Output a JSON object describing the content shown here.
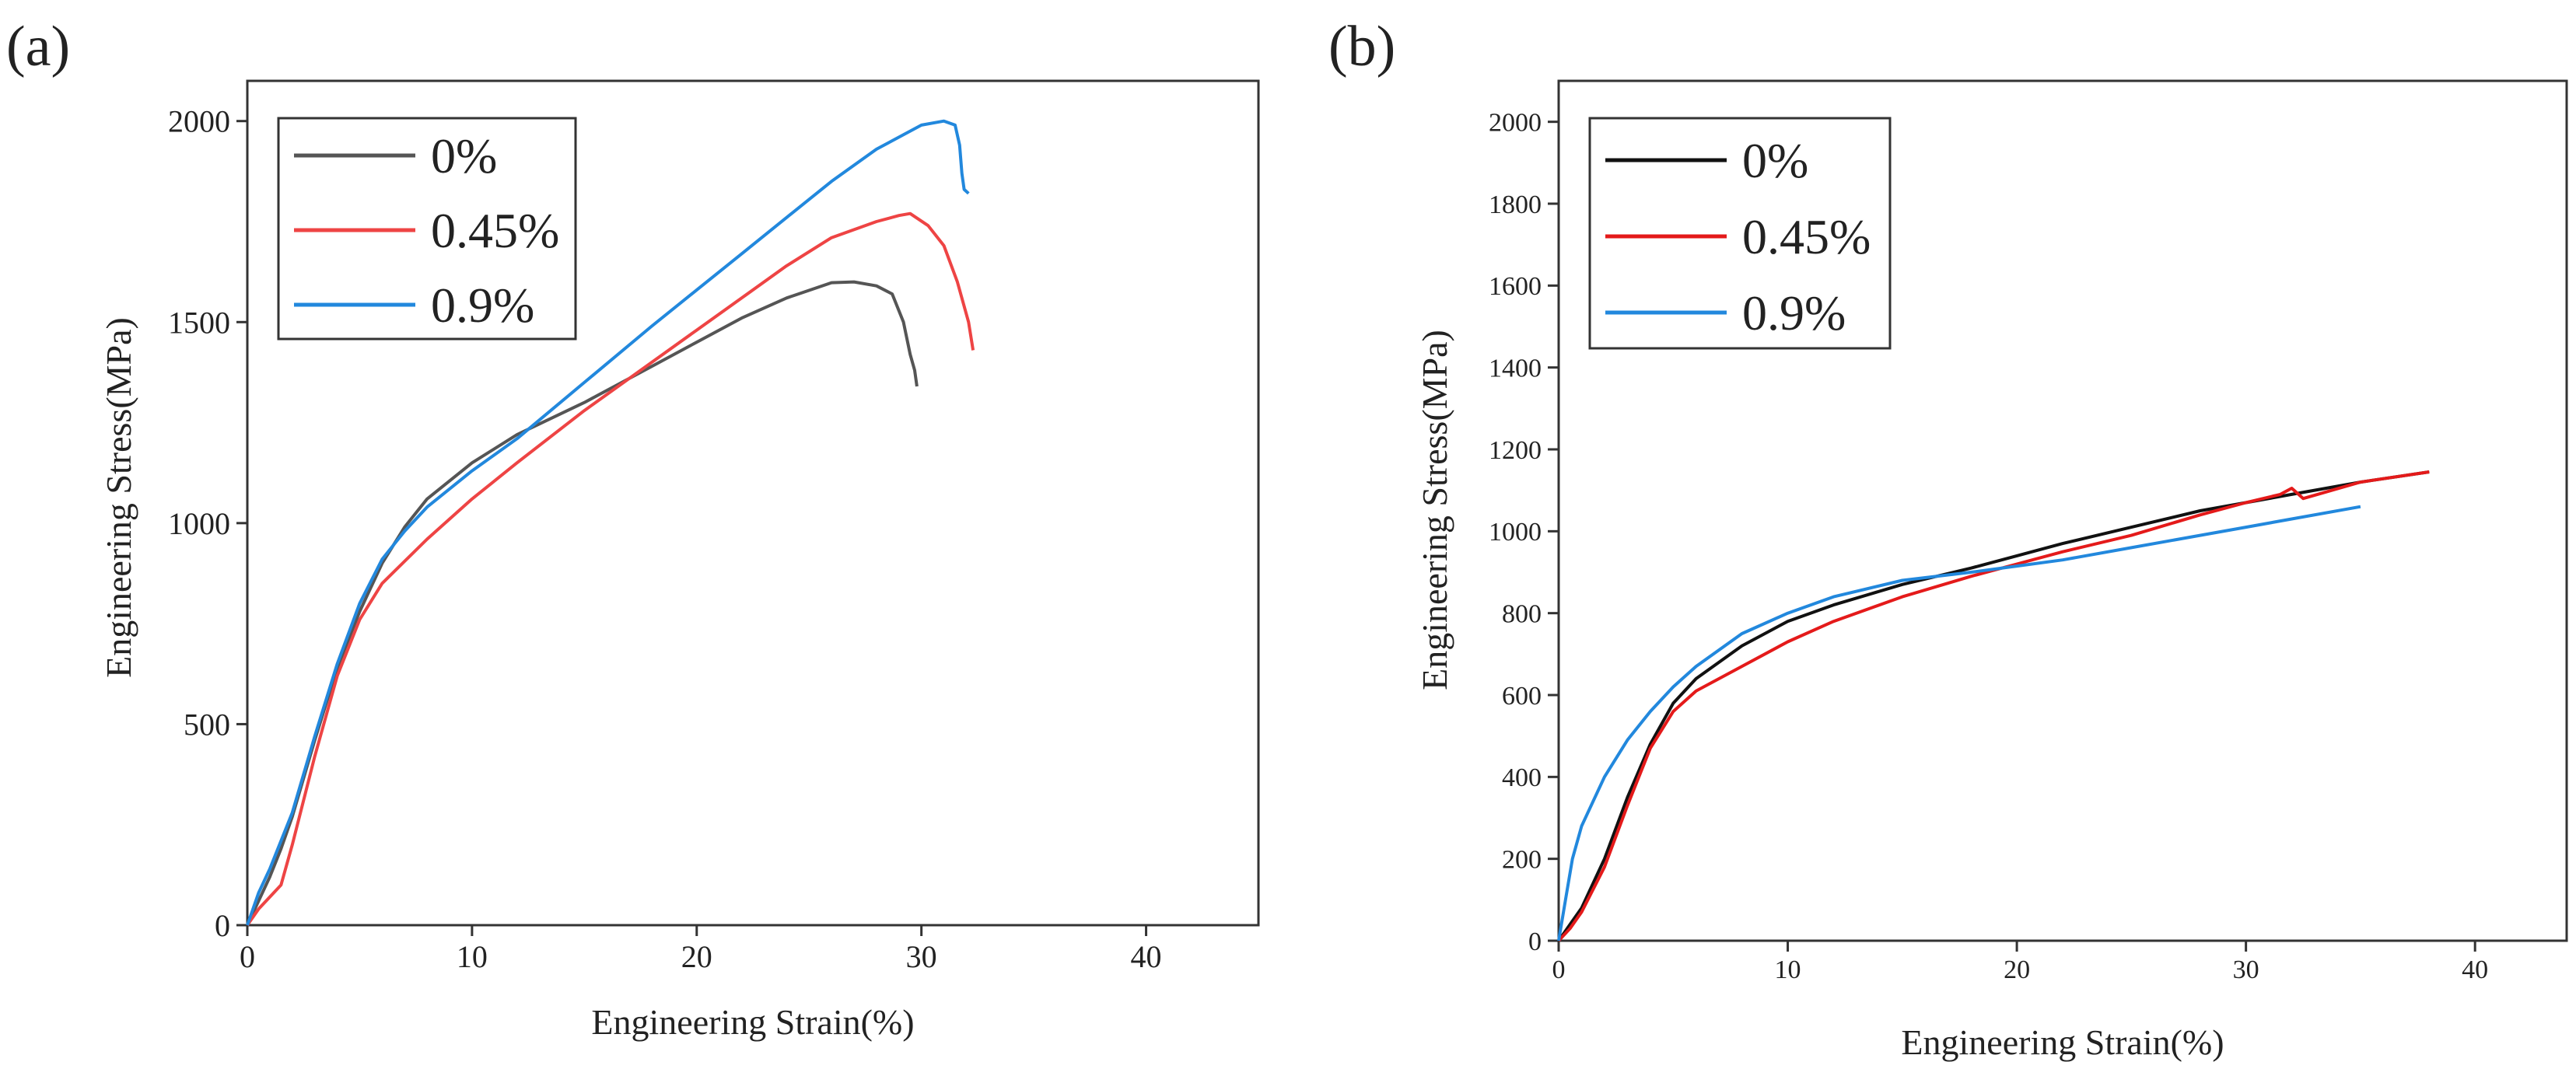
{
  "chart_data": [
    {
      "panel_label": "(a)",
      "type": "line",
      "title": "",
      "xlabel": "Engineering Strain(%)",
      "ylabel": "Engineering Stress(MPa)",
      "xlim": [
        0,
        45
      ],
      "ylim": [
        0,
        2100
      ],
      "xticks": [
        0,
        10,
        20,
        30,
        40
      ],
      "yticks": [
        0,
        500,
        1000,
        1500,
        2000
      ],
      "grid": false,
      "legend_position": "top-left",
      "series": [
        {
          "name": "0%",
          "color": "#555555",
          "x": [
            0,
            0.5,
            1,
            1.5,
            2,
            3,
            4,
            5,
            6,
            7,
            8,
            10,
            12,
            15,
            18,
            20,
            22,
            24,
            26,
            27,
            28,
            28.7,
            29.2,
            29.5,
            29.7,
            29.8
          ],
          "y": [
            0,
            60,
            120,
            190,
            270,
            460,
            640,
            780,
            900,
            990,
            1060,
            1150,
            1220,
            1300,
            1390,
            1450,
            1510,
            1560,
            1598,
            1600,
            1590,
            1570,
            1500,
            1420,
            1380,
            1340
          ]
        },
        {
          "name": "0.45%",
          "color": "#ee4444",
          "x": [
            0,
            0.5,
            1,
            1.5,
            2,
            3,
            4,
            5,
            6,
            8,
            10,
            12,
            15,
            18,
            20,
            22,
            24,
            26,
            28,
            29,
            29.5,
            30.3,
            31,
            31.6,
            32.1,
            32.3
          ],
          "y": [
            0,
            40,
            70,
            100,
            200,
            420,
            620,
            760,
            850,
            960,
            1060,
            1150,
            1280,
            1400,
            1480,
            1560,
            1640,
            1710,
            1750,
            1765,
            1770,
            1740,
            1690,
            1600,
            1500,
            1430
          ]
        },
        {
          "name": "0.9%",
          "color": "#2288dd",
          "x": [
            0,
            0.5,
            1,
            2,
            3,
            4,
            5,
            6,
            7,
            8,
            10,
            12,
            15,
            18,
            20,
            22,
            24,
            26,
            28,
            30,
            31,
            31.5,
            31.7,
            31.8,
            31.9,
            32.1
          ],
          "y": [
            0,
            80,
            140,
            280,
            470,
            650,
            800,
            910,
            980,
            1040,
            1130,
            1210,
            1350,
            1490,
            1580,
            1670,
            1760,
            1850,
            1930,
            1990,
            2000,
            1990,
            1940,
            1870,
            1830,
            1820
          ]
        }
      ]
    },
    {
      "panel_label": "(b)",
      "type": "line",
      "title": "",
      "xlabel": "Engineering Strain(%)",
      "ylabel": "Engineering Stress(MPa)",
      "xlim": [
        0,
        44
      ],
      "ylim": [
        0,
        2100
      ],
      "xticks": [
        0,
        10,
        20,
        30,
        40
      ],
      "yticks": [
        0,
        200,
        400,
        600,
        800,
        1000,
        1200,
        1400,
        1600,
        1800,
        2000
      ],
      "grid": false,
      "legend_position": "top-left",
      "series": [
        {
          "name": "0%",
          "color": "#111111",
          "x": [
            0,
            0.5,
            1,
            2,
            3,
            4,
            5,
            6,
            8,
            10,
            12,
            15,
            18,
            20,
            22,
            25,
            28,
            30,
            32,
            35,
            38
          ],
          "y": [
            0,
            40,
            80,
            200,
            350,
            480,
            580,
            640,
            720,
            780,
            820,
            870,
            910,
            940,
            970,
            1010,
            1050,
            1070,
            1090,
            1120,
            1145
          ]
        },
        {
          "name": "0.45%",
          "color": "#e41a1a",
          "x": [
            0,
            0.5,
            1,
            2,
            3,
            4,
            5,
            6,
            8,
            10,
            12,
            15,
            18,
            20,
            22,
            25,
            28,
            30,
            31.5,
            32,
            32.5,
            35,
            38
          ],
          "y": [
            0,
            30,
            70,
            180,
            330,
            470,
            560,
            610,
            670,
            730,
            780,
            840,
            890,
            920,
            950,
            990,
            1040,
            1070,
            1090,
            1105,
            1080,
            1120,
            1145
          ]
        },
        {
          "name": "0.9%",
          "color": "#2288dd",
          "x": [
            0,
            0.3,
            0.6,
            1,
            2,
            3,
            4,
            5,
            6,
            8,
            10,
            12,
            15,
            18,
            20,
            22,
            25,
            28,
            30,
            32,
            35
          ],
          "y": [
            0,
            100,
            200,
            280,
            400,
            490,
            560,
            620,
            670,
            750,
            800,
            840,
            880,
            900,
            915,
            930,
            960,
            990,
            1010,
            1030,
            1060
          ]
        }
      ]
    }
  ]
}
